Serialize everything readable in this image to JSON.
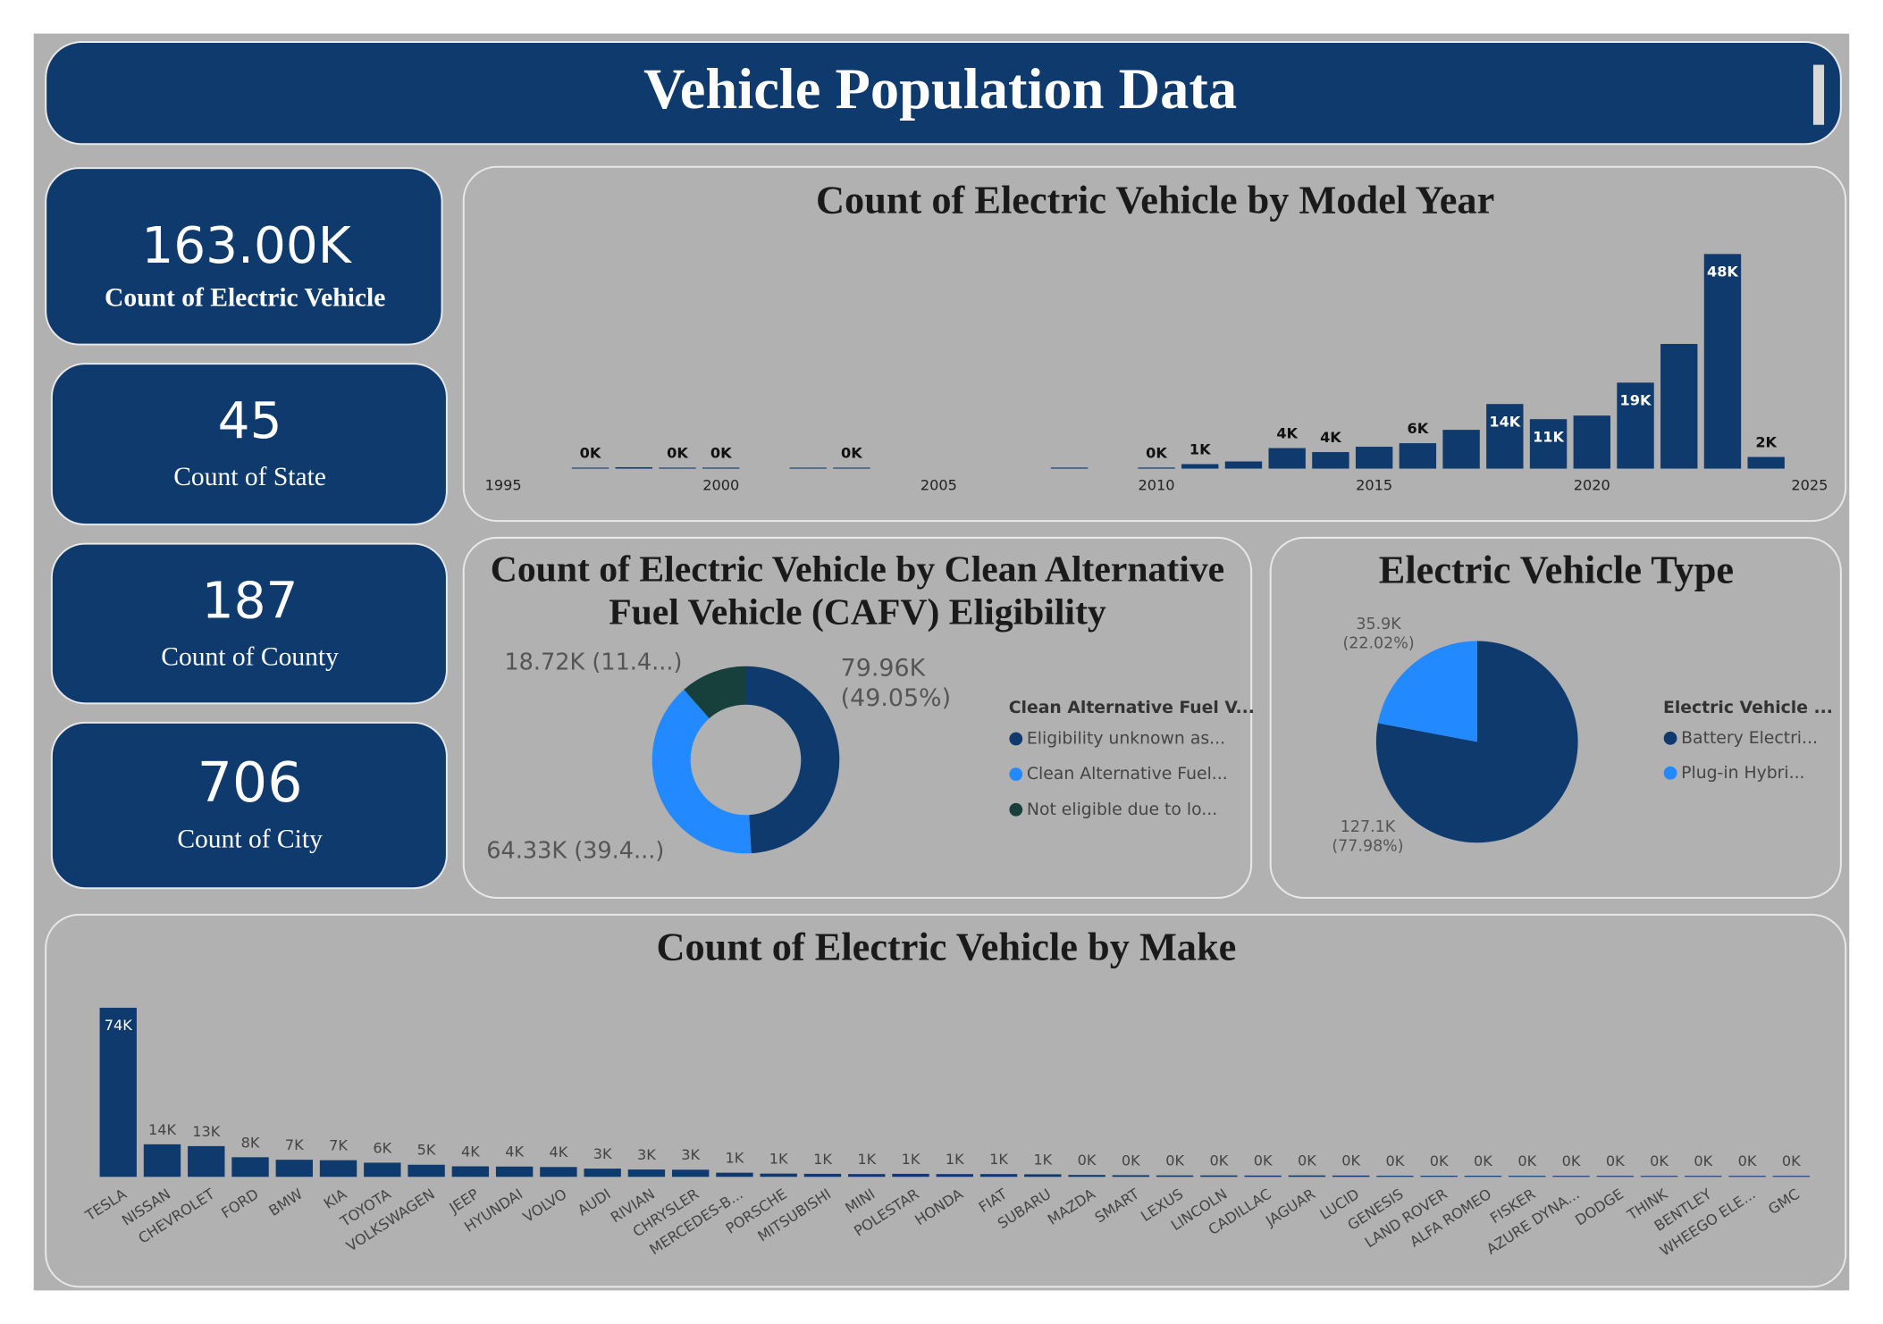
{
  "header": {
    "title": "Vehicle Population Data"
  },
  "cards": [
    {
      "value": "163.00K",
      "label": "Count of Electric Vehicle"
    },
    {
      "value": "45",
      "label": "Count of State"
    },
    {
      "value": "187",
      "label": "Count of County"
    },
    {
      "value": "706",
      "label": "Count of City"
    }
  ],
  "chart_data": [
    {
      "type": "bar",
      "title": "Count of Electric Vehicle by Model Year",
      "color": "#0f3a6e",
      "x": [
        1997,
        1998,
        1999,
        2000,
        2002,
        2003,
        2008,
        2010,
        2011,
        2012,
        2013,
        2014,
        2015,
        2016,
        2017,
        2018,
        2019,
        2020,
        2021,
        2022,
        2023,
        2024
      ],
      "values": [
        1,
        100,
        5,
        10,
        2,
        1,
        20,
        24,
        800,
        1400,
        4400,
        3500,
        4700,
        5500,
        8500,
        14300,
        10900,
        11700,
        19100,
        27800,
        48000,
        2400
      ],
      "value_labels": [
        "0K",
        null,
        "0K",
        "0K",
        null,
        "0K",
        null,
        "0K",
        "1K",
        null,
        "4K",
        "4K",
        null,
        "6K",
        null,
        "14K",
        "11K",
        null,
        "19K",
        null,
        "48K",
        "2K"
      ],
      "xlim": [
        1995,
        2025
      ],
      "xticks": [
        1995,
        2000,
        2005,
        2010,
        2015,
        2020,
        2025
      ],
      "ylim": [
        0,
        50000
      ]
    },
    {
      "type": "donut",
      "title": "Count of Electric Vehicle by Clean Alternative Fuel Vehicle (CAFV) Eligibility",
      "legend_title": "Clean Alternative Fuel V...",
      "categories": [
        "Eligibility unknown as...",
        "Clean Alternative Fuel...",
        "Not eligible due to lo..."
      ],
      "values": [
        79960,
        64330,
        18720
      ],
      "value_labels": [
        "79.96K (49.05%)",
        "64.33K (39.4...)",
        "18.72K (11.4...)"
      ],
      "colors": [
        "#0f3a6e",
        "#2389ff",
        "#17403c"
      ]
    },
    {
      "type": "pie",
      "title": "Electric Vehicle Type",
      "legend_title": "Electric Vehicle ...",
      "categories": [
        "Battery Electri...",
        "Plug-in Hybri..."
      ],
      "values": [
        127100,
        35900
      ],
      "value_labels": [
        "127.1K (77.98%)",
        "35.9K (22.02%)"
      ],
      "colors": [
        "#0f3a6e",
        "#2389ff"
      ]
    },
    {
      "type": "bar",
      "title": "Count of Electric Vehicle by Make",
      "color": "#0f3a6e",
      "categories": [
        "TESLA",
        "NISSAN",
        "CHEVROLET",
        "FORD",
        "BMW",
        "KIA",
        "TOYOTA",
        "VOLKSWAGEN",
        "JEEP",
        "HYUNDAI",
        "VOLVO",
        "AUDI",
        "RIVIAN",
        "CHRYSLER",
        "MERCEDES-B...",
        "PORSCHE",
        "MITSUBISHI",
        "MINI",
        "POLESTAR",
        "HONDA",
        "FIAT",
        "SUBARU",
        "MAZDA",
        "SMART",
        "LEXUS",
        "LINCOLN",
        "CADILLAC",
        "JAGUAR",
        "LUCID",
        "GENESIS",
        "LAND ROVER",
        "ALFA ROMEO",
        "FISKER",
        "AZURE DYNA...",
        "DODGE",
        "THINK",
        "BENTLEY",
        "WHEEGO ELE...",
        "GMC"
      ],
      "values": [
        74000,
        13900,
        13100,
        8200,
        7100,
        6900,
        5800,
        4900,
        4200,
        4100,
        3900,
        3200,
        2800,
        2700,
        1400,
        1000,
        900,
        800,
        900,
        800,
        800,
        700,
        400,
        300,
        200,
        200,
        150,
        200,
        150,
        50,
        40,
        40,
        20,
        7,
        5,
        3,
        3,
        3,
        2
      ],
      "value_labels": [
        "74K",
        "14K",
        "13K",
        "8K",
        "7K",
        "7K",
        "6K",
        "5K",
        "4K",
        "4K",
        "4K",
        "3K",
        "3K",
        "3K",
        "1K",
        "1K",
        "1K",
        "1K",
        "1K",
        "1K",
        "1K",
        "1K",
        "0K",
        "0K",
        "0K",
        "0K",
        "0K",
        "0K",
        "0K",
        "0K",
        "0K",
        "0K",
        "0K",
        "0K",
        "0K",
        "0K",
        "0K",
        "0K",
        "0K"
      ],
      "ylim": [
        0,
        80000
      ]
    }
  ]
}
